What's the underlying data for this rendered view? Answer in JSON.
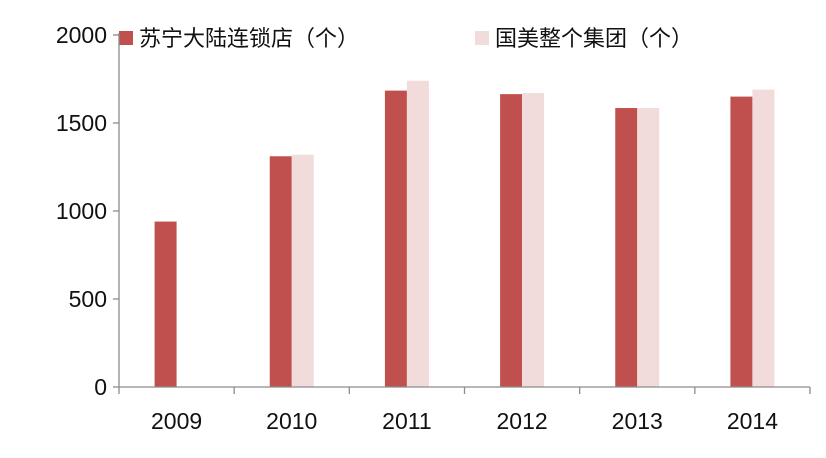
{
  "chart_data": {
    "type": "bar",
    "categories": [
      "2009",
      "2010",
      "2011",
      "2012",
      "2013",
      "2014"
    ],
    "series": [
      {
        "name": "苏宁大陆连锁店（个）",
        "color": "#c0504d",
        "values": [
          940,
          1311,
          1684,
          1664,
          1585,
          1650
        ]
      },
      {
        "name": "国美整个集团（个）",
        "color": "#f2dcdb",
        "values": [
          null,
          1320,
          1740,
          1670,
          1585,
          1690
        ]
      }
    ],
    "ylim": [
      0,
      2000
    ],
    "yticks": [
      "0",
      "500",
      "1000",
      "1500",
      "2000"
    ],
    "xlabel": "",
    "ylabel": "",
    "title": "",
    "grid": false,
    "legend_position": "top"
  }
}
